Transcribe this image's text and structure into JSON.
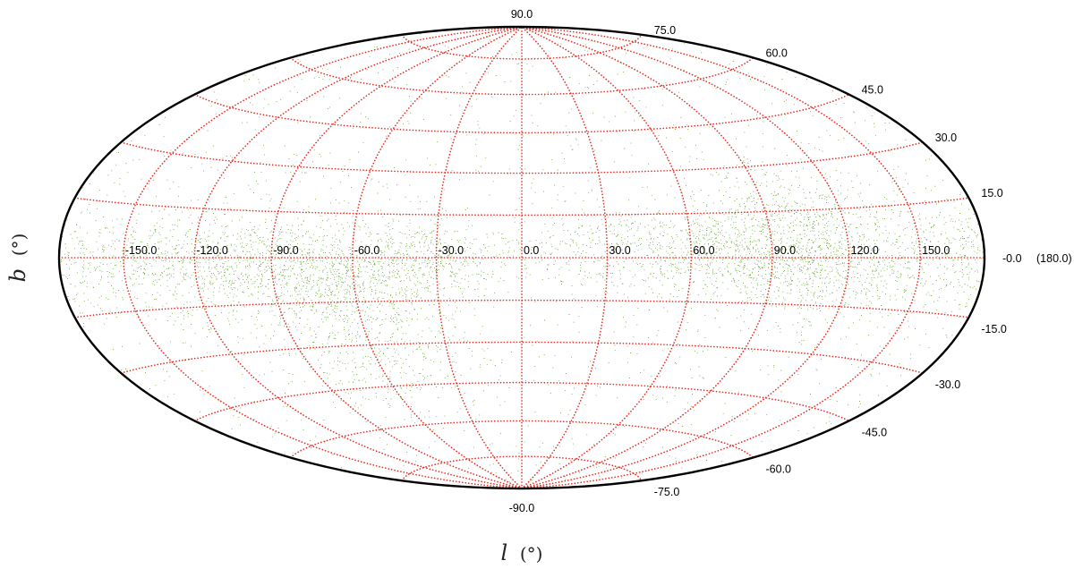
{
  "chart_data": {
    "type": "scatter",
    "projection": "aitoff-hammer",
    "xlabel": "l",
    "xlabel_unit": "(°)",
    "ylabel": "b",
    "ylabel_unit": "(°)",
    "xlim": [
      -180,
      180
    ],
    "ylim": [
      -90,
      90
    ],
    "grid": true,
    "point_color": "#6fa83a",
    "grid_color": "#e8281e",
    "meridian_ticks": [
      "-150.0",
      "-120.0",
      "-90.0",
      "-60.0",
      "-30.0",
      "0.0",
      "30.0",
      "60.0",
      "90.0",
      "120.0",
      "150.0"
    ],
    "meridian_values": [
      -150,
      -120,
      -90,
      -60,
      -30,
      0,
      30,
      60,
      90,
      120,
      150
    ],
    "parallel_ticks": [
      "90.0",
      "75.0",
      "60.0",
      "45.0",
      "30.0",
      "15.0",
      "-0.0",
      "-15.0",
      "-30.0",
      "-45.0",
      "-60.0",
      "-75.0",
      "-90.0"
    ],
    "parallel_values": [
      90,
      75,
      60,
      45,
      30,
      15,
      0,
      -15,
      -30,
      -45,
      -60,
      -75,
      -90
    ],
    "edge_tick_label": "(180.0)",
    "density_clusters": [
      {
        "l": -150,
        "b": 0,
        "sl": 30,
        "sb": 6,
        "weight": 3
      },
      {
        "l": -110,
        "b": -3,
        "sl": 25,
        "sb": 8,
        "weight": 5
      },
      {
        "l": -70,
        "b": -5,
        "sl": 22,
        "sb": 9,
        "weight": 8
      },
      {
        "l": -60,
        "b": -30,
        "sl": 18,
        "sb": 12,
        "weight": 4
      },
      {
        "l": -30,
        "b": 0,
        "sl": 15,
        "sb": 6,
        "weight": 3
      },
      {
        "l": 30,
        "b": 5,
        "sl": 20,
        "sb": 8,
        "weight": 3
      },
      {
        "l": 70,
        "b": 2,
        "sl": 22,
        "sb": 8,
        "weight": 6
      },
      {
        "l": 100,
        "b": 8,
        "sl": 20,
        "sb": 10,
        "weight": 6
      },
      {
        "l": 110,
        "b": -5,
        "sl": 20,
        "sb": 8,
        "weight": 4
      },
      {
        "l": 160,
        "b": 0,
        "sl": 20,
        "sb": 8,
        "weight": 3
      }
    ],
    "uniform_background_fraction": 0.22,
    "approx_point_count": 22000
  }
}
